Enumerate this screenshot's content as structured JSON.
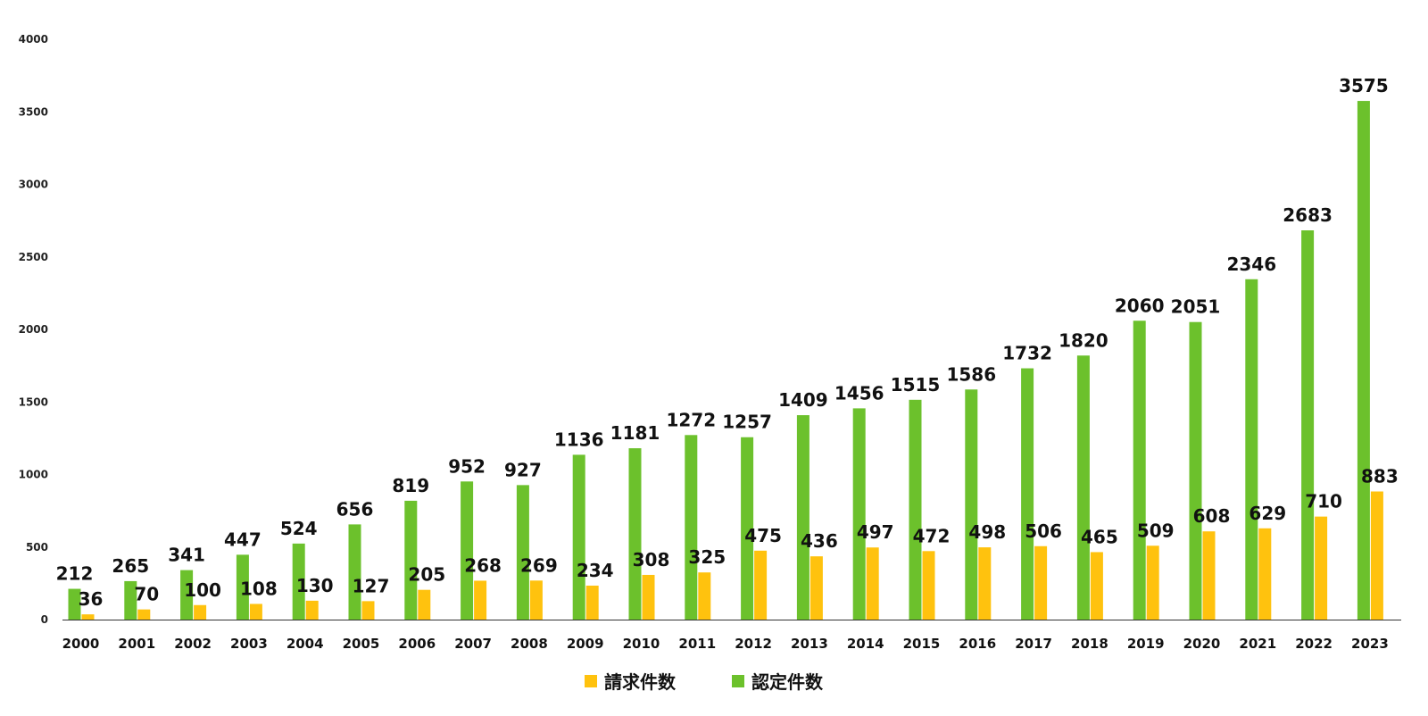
{
  "chart_data": {
    "type": "bar",
    "categories": [
      "2000",
      "2001",
      "2002",
      "2003",
      "2004",
      "2005",
      "2006",
      "2007",
      "2008",
      "2009",
      "2010",
      "2011",
      "2012",
      "2013",
      "2014",
      "2015",
      "2016",
      "2017",
      "2018",
      "2019",
      "2020",
      "2021",
      "2022",
      "2023"
    ],
    "series": [
      {
        "name": "認定件数",
        "color": "#6cc12c",
        "values": [
          212,
          265,
          341,
          447,
          524,
          656,
          819,
          952,
          927,
          1136,
          1181,
          1272,
          1257,
          1409,
          1456,
          1515,
          1586,
          1732,
          1820,
          2060,
          2051,
          2346,
          2683,
          3575
        ]
      },
      {
        "name": "請求件数",
        "color": "#ffc20e",
        "values": [
          36,
          70,
          100,
          108,
          130,
          127,
          205,
          268,
          269,
          234,
          308,
          325,
          475,
          436,
          497,
          472,
          498,
          506,
          465,
          509,
          608,
          629,
          710,
          883
        ]
      }
    ],
    "legend_order": [
      "請求件数",
      "認定件数"
    ],
    "legend_position": "bottom",
    "yticks": [
      0,
      500,
      1000,
      1500,
      2000,
      2500,
      3000,
      3500,
      4000
    ],
    "ylim": [
      0,
      4000
    ],
    "grid": false,
    "title": "",
    "xlabel": "",
    "ylabel": ""
  }
}
